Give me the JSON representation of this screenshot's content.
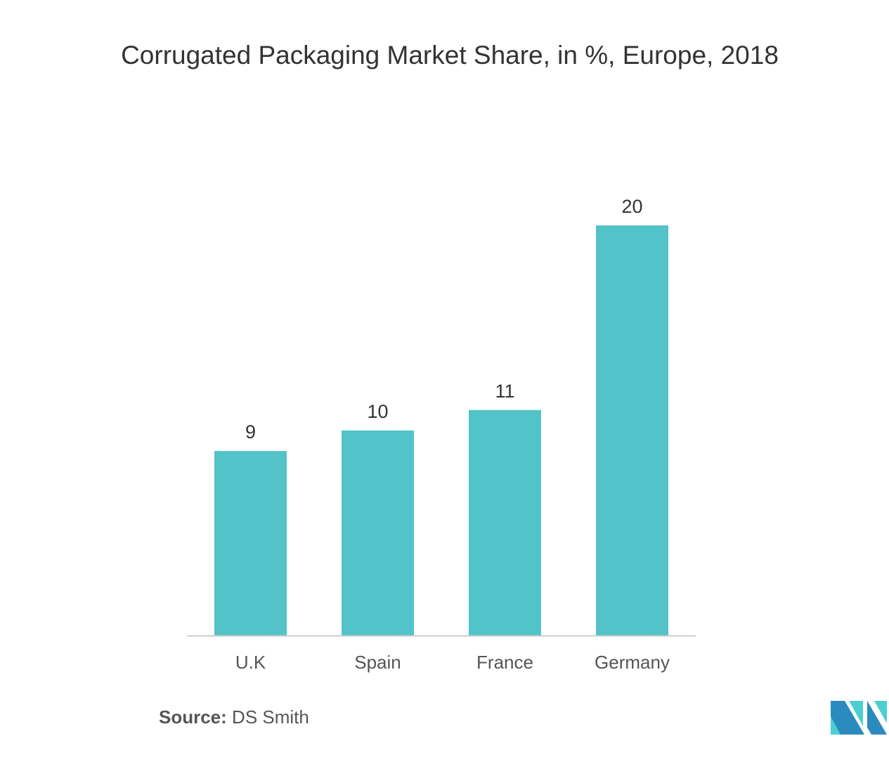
{
  "chart_data": {
    "type": "bar",
    "title": "Corrugated Packaging Market Share, in %, Europe, 2018",
    "categories": [
      "U.K",
      "Spain",
      "France",
      "Germany"
    ],
    "values": [
      9,
      10,
      11,
      20
    ],
    "xlabel": "",
    "ylabel": "",
    "ylim": [
      0,
      20
    ],
    "grid": false,
    "bar_color": "#52c3c9"
  },
  "source": {
    "label": "Source:",
    "value": "DS Smith"
  }
}
